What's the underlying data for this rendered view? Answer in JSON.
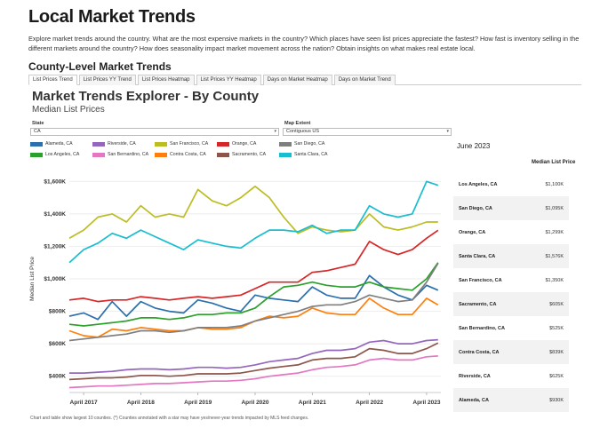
{
  "header": {
    "title": "Local Market Trends",
    "intro": "Explore market trends around the country. What are the most expensive markets in the country? Which places have seen list prices appreciate the fastest? How fast is inventory selling in the different markets around the country? How does seasonality impact market movement across the nation? Obtain insights on what makes real estate local.",
    "section_title": "County-Level Market Trends"
  },
  "tabs": [
    "List Prices Trend",
    "List Prices YY Trend",
    "List Prices Heatmap",
    "List Prices YY Heatmap",
    "Days on Market Heatmap",
    "Days on Market Trend"
  ],
  "viz": {
    "title": "Market Trends Explorer - By County",
    "subtitle": "Median List Prices"
  },
  "filters": {
    "state_label": "State",
    "state_value": "CA",
    "extent_label": "Map Extent",
    "extent_value": "Contiguous US"
  },
  "side_panel": {
    "month": "June 2023",
    "column_header": "Median List Price",
    "rows": [
      {
        "county": "Los Angeles, CA",
        "price": "$1,100K"
      },
      {
        "county": "San Diego, CA",
        "price": "$1,095K"
      },
      {
        "county": "Orange, CA",
        "price": "$1,299K"
      },
      {
        "county": "Santa Clara, CA",
        "price": "$1,576K"
      },
      {
        "county": "San Francisco, CA",
        "price": "$1,350K"
      },
      {
        "county": "Sacramento, CA",
        "price": "$605K"
      },
      {
        "county": "San Bernardino, CA",
        "price": "$525K"
      },
      {
        "county": "Contra Costa, CA",
        "price": "$839K"
      },
      {
        "county": "Riverside, CA",
        "price": "$625K"
      },
      {
        "county": "Alameda, CA",
        "price": "$930K"
      }
    ]
  },
  "footnote": "Chart and table show largest 10 counties. (*) Counties annotated with a star may have yes/never-year trends impacted by MLS feed changes.",
  "chart_data": {
    "type": "line",
    "title": "Market Trends Explorer - By County",
    "subtitle": "Median List Prices",
    "xlabel": "",
    "ylabel": "Median List Price",
    "ylim": [
      300000,
      1700000
    ],
    "yticks": [
      400000,
      600000,
      800000,
      1000000,
      1200000,
      1400000,
      1600000
    ],
    "ytick_labels": [
      "$400K",
      "$600K",
      "$800K",
      "$1,000K",
      "$1,200K",
      "$1,400K",
      "$1,600K"
    ],
    "xticks": [
      2017.25,
      2018.25,
      2019.25,
      2020.25,
      2021.25,
      2022.25,
      2023.25
    ],
    "xtick_labels": [
      "April 2017",
      "April 2018",
      "April 2019",
      "April 2020",
      "April 2021",
      "April 2022",
      "April 2023"
    ],
    "xlim": [
      2017.0,
      2023.5
    ],
    "series": [
      {
        "name": "Alameda, CA",
        "color": "#2c6fad",
        "x": [
          2017.0,
          2017.25,
          2017.5,
          2017.75,
          2018.0,
          2018.25,
          2018.5,
          2018.75,
          2019.0,
          2019.25,
          2019.5,
          2019.75,
          2020.0,
          2020.25,
          2020.5,
          2020.75,
          2021.0,
          2021.25,
          2021.5,
          2021.75,
          2022.0,
          2022.25,
          2022.5,
          2022.75,
          2023.0,
          2023.25,
          2023.45
        ],
        "values": [
          770000,
          790000,
          750000,
          860000,
          770000,
          860000,
          820000,
          800000,
          790000,
          870000,
          850000,
          820000,
          800000,
          900000,
          880000,
          870000,
          860000,
          950000,
          900000,
          880000,
          880000,
          1020000,
          950000,
          900000,
          870000,
          960000,
          930000
        ]
      },
      {
        "name": "Los Angeles, CA",
        "color": "#2ca02c",
        "x": [
          2017.0,
          2017.25,
          2017.5,
          2017.75,
          2018.0,
          2018.25,
          2018.5,
          2018.75,
          2019.0,
          2019.25,
          2019.5,
          2019.75,
          2020.0,
          2020.25,
          2020.5,
          2020.75,
          2021.0,
          2021.25,
          2021.5,
          2021.75,
          2022.0,
          2022.25,
          2022.5,
          2022.75,
          2023.0,
          2023.25,
          2023.45
        ],
        "values": [
          720000,
          710000,
          720000,
          730000,
          740000,
          760000,
          760000,
          750000,
          760000,
          780000,
          780000,
          790000,
          790000,
          820000,
          890000,
          950000,
          960000,
          980000,
          960000,
          950000,
          950000,
          980000,
          950000,
          940000,
          930000,
          1000000,
          1100000
        ]
      },
      {
        "name": "Riverside, CA",
        "color": "#9467bd",
        "x": [
          2017.0,
          2017.25,
          2017.5,
          2017.75,
          2018.0,
          2018.25,
          2018.5,
          2018.75,
          2019.0,
          2019.25,
          2019.5,
          2019.75,
          2020.0,
          2020.25,
          2020.5,
          2020.75,
          2021.0,
          2021.25,
          2021.5,
          2021.75,
          2022.0,
          2022.25,
          2022.5,
          2022.75,
          2023.0,
          2023.25,
          2023.45
        ],
        "values": [
          420000,
          420000,
          425000,
          430000,
          440000,
          445000,
          445000,
          440000,
          445000,
          455000,
          455000,
          450000,
          455000,
          470000,
          490000,
          500000,
          510000,
          540000,
          560000,
          560000,
          570000,
          610000,
          620000,
          600000,
          600000,
          620000,
          625000
        ]
      },
      {
        "name": "San Bernardino, CA",
        "color": "#e377c2",
        "x": [
          2017.0,
          2017.25,
          2017.5,
          2017.75,
          2018.0,
          2018.25,
          2018.5,
          2018.75,
          2019.0,
          2019.25,
          2019.5,
          2019.75,
          2020.0,
          2020.25,
          2020.5,
          2020.75,
          2021.0,
          2021.25,
          2021.5,
          2021.75,
          2022.0,
          2022.25,
          2022.5,
          2022.75,
          2023.0,
          2023.25,
          2023.45
        ],
        "values": [
          330000,
          335000,
          340000,
          340000,
          345000,
          350000,
          355000,
          355000,
          360000,
          365000,
          370000,
          370000,
          375000,
          385000,
          400000,
          410000,
          420000,
          440000,
          455000,
          460000,
          470000,
          500000,
          510000,
          500000,
          500000,
          520000,
          525000
        ]
      },
      {
        "name": "San Francisco, CA",
        "color": "#bcbd22",
        "x": [
          2017.0,
          2017.25,
          2017.5,
          2017.75,
          2018.0,
          2018.25,
          2018.5,
          2018.75,
          2019.0,
          2019.25,
          2019.5,
          2019.75,
          2020.0,
          2020.25,
          2020.5,
          2020.75,
          2021.0,
          2021.25,
          2021.5,
          2021.75,
          2022.0,
          2022.25,
          2022.5,
          2022.75,
          2023.0,
          2023.25,
          2023.45
        ],
        "values": [
          1250000,
          1300000,
          1380000,
          1400000,
          1350000,
          1450000,
          1380000,
          1400000,
          1380000,
          1550000,
          1480000,
          1450000,
          1500000,
          1570000,
          1500000,
          1380000,
          1280000,
          1320000,
          1300000,
          1290000,
          1300000,
          1400000,
          1320000,
          1300000,
          1320000,
          1350000,
          1350000
        ]
      },
      {
        "name": "Contra Costa, CA",
        "color": "#ff7f0e",
        "x": [
          2017.0,
          2017.25,
          2017.5,
          2017.75,
          2018.0,
          2018.25,
          2018.5,
          2018.75,
          2019.0,
          2019.25,
          2019.5,
          2019.75,
          2020.0,
          2020.25,
          2020.5,
          2020.75,
          2021.0,
          2021.25,
          2021.5,
          2021.75,
          2022.0,
          2022.25,
          2022.5,
          2022.75,
          2023.0,
          2023.25,
          2023.45
        ],
        "values": [
          680000,
          650000,
          640000,
          690000,
          680000,
          700000,
          690000,
          680000,
          680000,
          700000,
          690000,
          690000,
          700000,
          740000,
          770000,
          760000,
          770000,
          820000,
          790000,
          780000,
          780000,
          880000,
          820000,
          780000,
          780000,
          880000,
          839000
        ]
      },
      {
        "name": "Orange, CA",
        "color": "#d62728",
        "x": [
          2017.0,
          2017.25,
          2017.5,
          2017.75,
          2018.0,
          2018.25,
          2018.5,
          2018.75,
          2019.0,
          2019.25,
          2019.5,
          2019.75,
          2020.0,
          2020.25,
          2020.5,
          2020.75,
          2021.0,
          2021.25,
          2021.5,
          2021.75,
          2022.0,
          2022.25,
          2022.5,
          2022.75,
          2023.0,
          2023.25,
          2023.45
        ],
        "values": [
          870000,
          880000,
          860000,
          870000,
          870000,
          890000,
          880000,
          870000,
          880000,
          890000,
          880000,
          890000,
          900000,
          940000,
          980000,
          980000,
          980000,
          1040000,
          1050000,
          1070000,
          1090000,
          1230000,
          1180000,
          1150000,
          1180000,
          1250000,
          1299000
        ]
      },
      {
        "name": "Sacramento, CA",
        "color": "#8c564b",
        "x": [
          2017.0,
          2017.25,
          2017.5,
          2017.75,
          2018.0,
          2018.25,
          2018.5,
          2018.75,
          2019.0,
          2019.25,
          2019.5,
          2019.75,
          2020.0,
          2020.25,
          2020.5,
          2020.75,
          2021.0,
          2021.25,
          2021.5,
          2021.75,
          2022.0,
          2022.25,
          2022.5,
          2022.75,
          2023.0,
          2023.25,
          2023.45
        ],
        "values": [
          380000,
          385000,
          390000,
          390000,
          395000,
          405000,
          405000,
          400000,
          405000,
          415000,
          415000,
          415000,
          420000,
          435000,
          450000,
          460000,
          470000,
          500000,
          510000,
          510000,
          520000,
          570000,
          560000,
          540000,
          540000,
          570000,
          605000
        ]
      },
      {
        "name": "San Diego, CA",
        "color": "#7f7f7f",
        "x": [
          2017.0,
          2017.25,
          2017.5,
          2017.75,
          2018.0,
          2018.25,
          2018.5,
          2018.75,
          2019.0,
          2019.25,
          2019.5,
          2019.75,
          2020.0,
          2020.25,
          2020.5,
          2020.75,
          2021.0,
          2021.25,
          2021.5,
          2021.75,
          2022.0,
          2022.25,
          2022.5,
          2022.75,
          2023.0,
          2023.25,
          2023.45
        ],
        "values": [
          620000,
          630000,
          640000,
          650000,
          660000,
          680000,
          680000,
          670000,
          680000,
          700000,
          700000,
          700000,
          710000,
          740000,
          760000,
          780000,
          800000,
          830000,
          840000,
          840000,
          860000,
          900000,
          880000,
          860000,
          870000,
          980000,
          1095000
        ]
      },
      {
        "name": "Santa Clara, CA",
        "color": "#17becf",
        "x": [
          2017.0,
          2017.25,
          2017.5,
          2017.75,
          2018.0,
          2018.25,
          2018.5,
          2018.75,
          2019.0,
          2019.25,
          2019.5,
          2019.75,
          2020.0,
          2020.25,
          2020.5,
          2020.75,
          2021.0,
          2021.25,
          2021.5,
          2021.75,
          2022.0,
          2022.25,
          2022.5,
          2022.75,
          2023.0,
          2023.25,
          2023.45
        ],
        "values": [
          1100000,
          1180000,
          1220000,
          1280000,
          1250000,
          1300000,
          1260000,
          1220000,
          1180000,
          1240000,
          1220000,
          1200000,
          1190000,
          1250000,
          1300000,
          1300000,
          1290000,
          1330000,
          1280000,
          1300000,
          1300000,
          1450000,
          1400000,
          1380000,
          1400000,
          1600000,
          1576000
        ]
      }
    ]
  }
}
